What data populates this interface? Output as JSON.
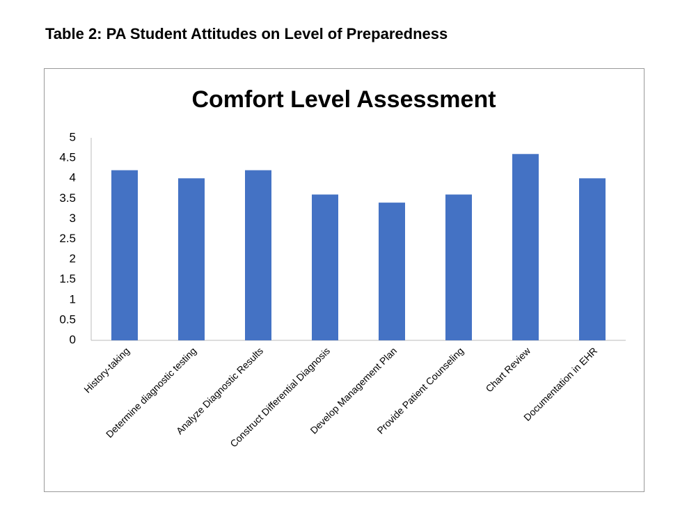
{
  "caption": "Table 2: PA Student Attitudes on Level of Preparedness",
  "chart_data": {
    "type": "bar",
    "title": "Comfort Level Assessment",
    "categories": [
      "History-taking",
      "Determine diagnostic testing",
      "Analyze Diagnostic Results",
      "Construct Differential Diagnosis",
      "Develop Management Plan",
      "Provide Patient Counseling",
      "Chart Review",
      "Documentation in EHR"
    ],
    "values": [
      4.2,
      4.0,
      4.2,
      3.6,
      3.4,
      3.6,
      4.6,
      4.0
    ],
    "color": "#4472c4",
    "ylim": [
      0,
      5
    ],
    "yticks": [
      0,
      0.5,
      1,
      1.5,
      2,
      2.5,
      3,
      3.5,
      4,
      4.5,
      5
    ],
    "grid": false
  }
}
